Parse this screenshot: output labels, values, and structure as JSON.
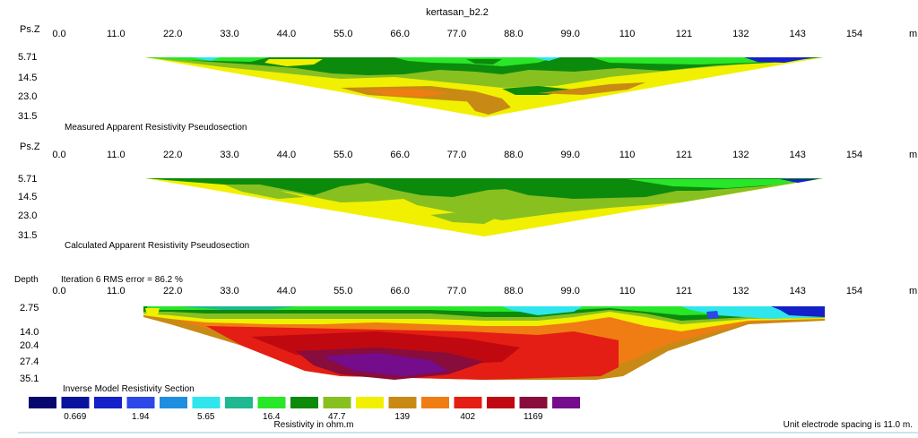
{
  "title": "kertasan_b2.2",
  "unit_note": "Unit electrode spacing is 11.0 m.",
  "scale_title": "Resistivity in ohm.m",
  "chart_data": [
    {
      "type": "heatmap",
      "id": "measured",
      "axis_label": "Ps.Z",
      "x_unit": "m",
      "caption": "Measured Apparent Resistivity Pseudosection",
      "x_ticks": [
        "0.0",
        "11.0",
        "22.0",
        "33.0",
        "44.0",
        "55.0",
        "66.0",
        "77.0",
        "88.0",
        "99.0",
        "110",
        "121",
        "132",
        "143",
        "154"
      ],
      "depth_ticks": [
        "5.71",
        "14.5",
        "23.0",
        "31.5"
      ],
      "x_range": [
        0,
        154
      ],
      "section_extent": [
        16.5,
        148.5
      ],
      "max_depth": 31.5
    },
    {
      "type": "heatmap",
      "id": "calculated",
      "axis_label": "Ps.Z",
      "x_unit": "m",
      "caption": "Calculated Apparent Resistivity Pseudosection",
      "x_ticks": [
        "0.0",
        "11.0",
        "22.0",
        "33.0",
        "44.0",
        "55.0",
        "66.0",
        "77.0",
        "88.0",
        "99.0",
        "110",
        "121",
        "132",
        "143",
        "154"
      ],
      "depth_ticks": [
        "5.71",
        "14.5",
        "23.0",
        "31.5"
      ],
      "x_range": [
        0,
        154
      ],
      "section_extent": [
        16.5,
        148.5
      ],
      "max_depth": 31.5
    },
    {
      "type": "heatmap",
      "id": "inverse",
      "axis_label": "Depth",
      "iteration_label": "Iteration 6 RMS error = 86.2 %",
      "x_unit": "m",
      "caption": "Inverse Model Resistivity Section",
      "x_ticks": [
        "0.0",
        "11.0",
        "22.0",
        "33.0",
        "44.0",
        "55.0",
        "66.0",
        "77.0",
        "88.0",
        "99.0",
        "110",
        "121",
        "132",
        "143",
        "154"
      ],
      "depth_ticks": [
        "2.75",
        "14.0",
        "20.4",
        "27.4",
        "35.1"
      ],
      "x_range": [
        0,
        154
      ],
      "section_extent": [
        16.5,
        148.5
      ],
      "max_depth": 35.1
    }
  ],
  "color_scale": {
    "colors": [
      "#06086e",
      "#08129c",
      "#1420c8",
      "#2c48e6",
      "#1e8fe0",
      "#2ee6ec",
      "#20b890",
      "#28e628",
      "#0c8a0c",
      "#88c020",
      "#f0f000",
      "#c88a14",
      "#f07c14",
      "#e41e14",
      "#c00810",
      "#880c3c",
      "#740c8c"
    ],
    "values": [
      "0.669",
      "1.94",
      "5.65",
      "16.4",
      "47.7",
      "139",
      "402",
      "1169"
    ]
  }
}
